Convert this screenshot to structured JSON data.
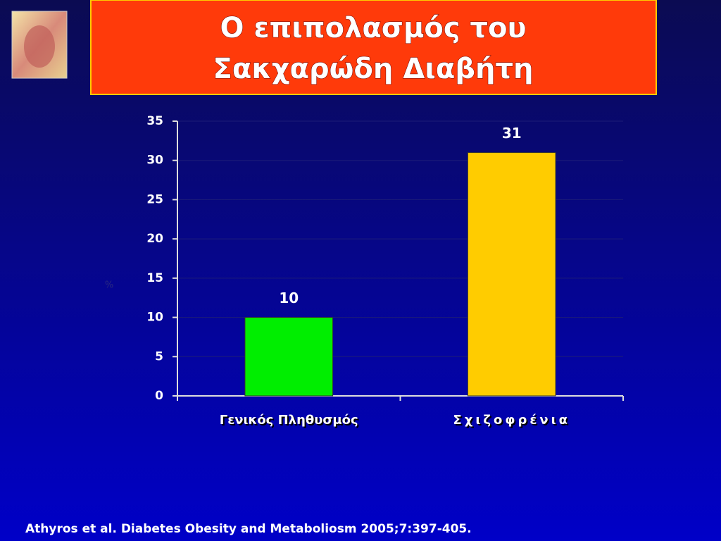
{
  "chart_data": {
    "type": "bar",
    "title": [
      "Ο επιπολασμός του",
      "Σακχαρώδη Διαβήτη"
    ],
    "y_label": "%",
    "categories": [
      "Γενικός Πληθυσμός",
      "Σχιζοφρένια"
    ],
    "values": [
      10,
      31
    ],
    "colors": [
      "#00ee00",
      "#ffcc00"
    ],
    "ylim": [
      0,
      35
    ],
    "yticks": [
      0,
      5,
      10,
      15,
      20,
      25,
      30,
      35
    ],
    "grid": true
  },
  "footer": {
    "citation": "Athyros et al. Diabetes Obesity and Metaboliosm 2005;7:397-405."
  }
}
